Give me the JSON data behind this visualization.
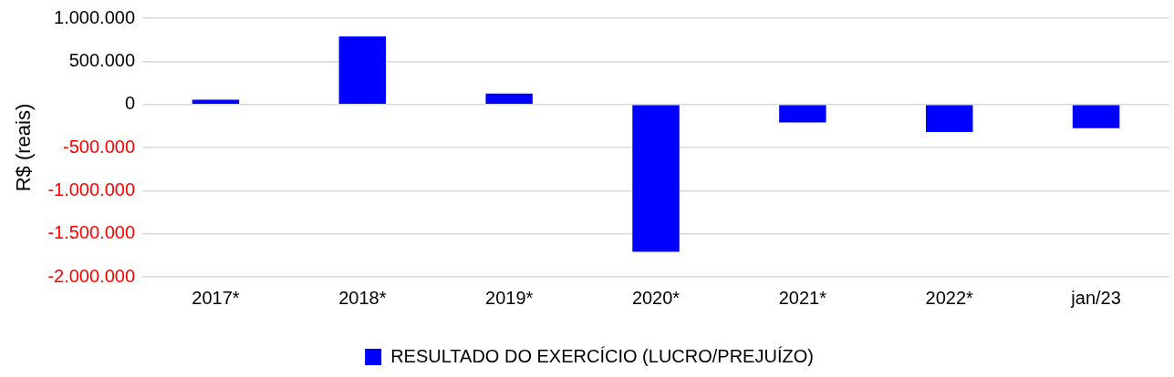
{
  "chart_data": {
    "type": "bar",
    "ylabel": "R$ (reais)",
    "categories": [
      "2017*",
      "2018*",
      "2019*",
      "2020*",
      "2021*",
      "2022*",
      "jan/23"
    ],
    "series": [
      {
        "name": "RESULTADO DO EXERCÍCIO (LUCRO/PREJUÍZO)",
        "color": "#0000ff",
        "values": [
          55000,
          790000,
          125000,
          -1710000,
          -210000,
          -320000,
          -275000
        ]
      }
    ],
    "ylim": [
      -2000000,
      1000000
    ],
    "yticks": [
      {
        "value": -2000000,
        "label": "-2.000.000"
      },
      {
        "value": -1500000,
        "label": "-1.500.000"
      },
      {
        "value": -1000000,
        "label": "-1.000.000"
      },
      {
        "value": -500000,
        "label": "-500.000"
      },
      {
        "value": 0,
        "label": "0"
      },
      {
        "value": 500000,
        "label": "500.000"
      },
      {
        "value": 1000000,
        "label": "1.000.000"
      }
    ],
    "grid": "y",
    "legend": "bottom"
  }
}
